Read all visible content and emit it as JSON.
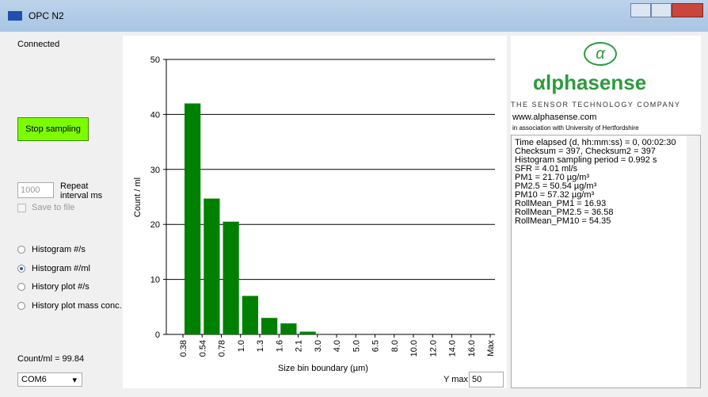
{
  "window": {
    "title": "OPC N2"
  },
  "status": "Connected",
  "controls": {
    "button": "Stop sampling",
    "interval_value": "1000",
    "interval_label": [
      "Repeat",
      "interval ms"
    ],
    "save_to_file": "Save to file",
    "modes": [
      "Histogram #/s",
      "Histogram #/ml",
      "History plot #/s",
      "History plot mass conc."
    ],
    "selected_mode": 1,
    "count_readout": "Count/ml = 99.84",
    "port": "COM6"
  },
  "logo": {
    "name": "αlphasense",
    "tagline": "THE SENSOR TECHNOLOGY COMPANY",
    "url": "www.alphasense.com",
    "association": "in association with University of Hertfordshire"
  },
  "log_lines": [
    "Time elapsed (d, hh:mm:ss) = 0, 00:02:30",
    "Checksum = 397, Checksum2 = 397",
    "Histogram sampling period = 0.992 s",
    "SFR = 4.01 ml/s",
    "PM1 = 21.70 µg/m³",
    "PM2.5 = 50.54 µg/m³",
    "PM10 = 57.32 µg/m³",
    "RollMean_PM1 = 16.93",
    "RollMean_PM2.5 = 36.58",
    "RollMean_PM10 = 54.35"
  ],
  "ymax": {
    "label": "Y max",
    "value": "50"
  },
  "chart_data": {
    "type": "histogram",
    "x_label": "Size bin boundary (µm)",
    "y_label": "Count / ml",
    "bins": [
      "0.38",
      "0.54",
      "0.78",
      "1.0",
      "1.3",
      "1.6",
      "2.1",
      "3.0",
      "4.0",
      "5.0",
      "6.5",
      "8.0",
      "10.0",
      "12.0",
      "14.0",
      "16.0",
      "Max"
    ],
    "values": [
      42,
      24.7,
      20.5,
      7,
      3,
      2,
      0.5,
      0,
      0,
      0,
      0,
      0,
      0,
      0,
      0,
      0
    ],
    "color": "#008000",
    "ylim": [
      0,
      50
    ],
    "yticks": [
      0,
      10,
      20,
      30,
      40,
      50
    ],
    "grid": true
  }
}
